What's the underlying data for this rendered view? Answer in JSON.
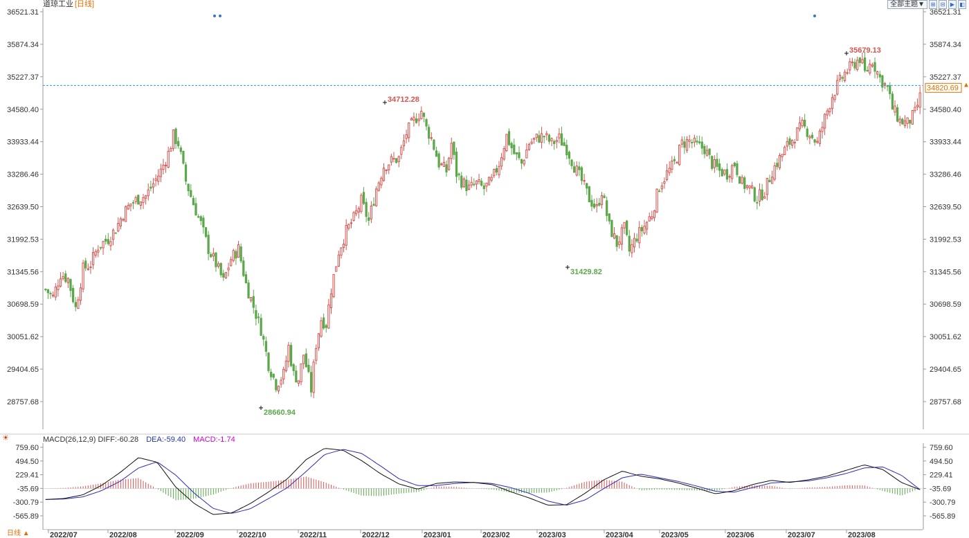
{
  "header": {
    "instrument": "道琼工业",
    "period": "[日线]"
  },
  "toolbar": {
    "theme_select": "全部主题▼",
    "buttons": [
      "⊞",
      "⊟",
      "▶",
      "◧"
    ]
  },
  "macd_legend": {
    "name": "MACD(26,12,9)",
    "diff": "DIFF:-60.28",
    "dea": "DEA:-59.40",
    "macd": "MACD:-1.74"
  },
  "period_tab": "日线 ▲",
  "colors": {
    "up": "#d9534f",
    "down": "#5aa84a",
    "diff_line": "#111111",
    "dea_line": "#2b2bbf",
    "current_line": "#3399dd",
    "current_tag": "#e07000"
  },
  "chart_data": [
    {
      "type": "candlestick",
      "title": "道琼工业 [日线]",
      "y_ticks": [
        "36521.31",
        "35874.34",
        "35227.37",
        "34580.40",
        "33933.44",
        "33286.46",
        "32639.50",
        "31992.53",
        "31345.56",
        "30698.59",
        "30051.62",
        "29404.65",
        "28757.68"
      ],
      "ylim": [
        28757.68,
        36521.31
      ],
      "x_ticks": [
        "2022/07",
        "2022/08",
        "2022/09",
        "2022/10",
        "2022/11",
        "2022/12",
        "2023/01",
        "2023/02",
        "2023/03",
        "2023/04",
        "2023/05",
        "2023/06",
        "2023/07",
        "2023/08"
      ],
      "current_price": "34820.69",
      "annotations": [
        {
          "label": "28660.94",
          "kind": "low",
          "value": 28660.94,
          "month": "2022/10"
        },
        {
          "label": "34712.28",
          "kind": "high",
          "value": 34712.28,
          "month": "2022/12"
        },
        {
          "label": "31429.82",
          "kind": "low",
          "value": 31429.82,
          "month": "2023/03"
        },
        {
          "label": "35679.13",
          "kind": "high",
          "value": 35679.13,
          "month": "2023/08"
        }
      ],
      "close_path": [
        [
          0,
          30990
        ],
        [
          3,
          30840
        ],
        [
          6,
          31300
        ],
        [
          9,
          31200
        ],
        [
          12,
          30620
        ],
        [
          15,
          31400
        ],
        [
          18,
          31500
        ],
        [
          21,
          31850
        ],
        [
          25,
          32000
        ],
        [
          28,
          32200
        ],
        [
          31,
          32500
        ],
        [
          34,
          32700
        ],
        [
          37,
          32800
        ],
        [
          40,
          32850
        ],
        [
          43,
          33100
        ],
        [
          46,
          33350
        ],
        [
          49,
          33700
        ],
        [
          51,
          34050
        ],
        [
          53,
          33900
        ],
        [
          56,
          33150
        ],
        [
          59,
          32700
        ],
        [
          62,
          32300
        ],
        [
          65,
          31800
        ],
        [
          68,
          31500
        ],
        [
          71,
          31150
        ],
        [
          74,
          31600
        ],
        [
          77,
          31800
        ],
        [
          80,
          31100
        ],
        [
          83,
          30650
        ],
        [
          86,
          30200
        ],
        [
          89,
          29500
        ],
        [
          92,
          29100
        ],
        [
          95,
          29300
        ],
        [
          97,
          29850
        ],
        [
          99,
          29300
        ],
        [
          101,
          29200
        ],
        [
          103,
          29700
        ],
        [
          106,
          29000
        ],
        [
          108,
          29900
        ],
        [
          110,
          30400
        ],
        [
          112,
          30300
        ],
        [
          114,
          31000
        ],
        [
          117,
          31750
        ],
        [
          120,
          32150
        ],
        [
          123,
          32400
        ],
        [
          126,
          32750
        ],
        [
          129,
          32350
        ],
        [
          132,
          33000
        ],
        [
          135,
          33450
        ],
        [
          138,
          33550
        ],
        [
          141,
          33600
        ],
        [
          144,
          34100
        ],
        [
          147,
          34350
        ],
        [
          150,
          34550
        ],
        [
          152,
          34200
        ],
        [
          154,
          34000
        ],
        [
          157,
          33500
        ],
        [
          160,
          33350
        ],
        [
          162,
          33900
        ],
        [
          164,
          33300
        ],
        [
          166,
          33150
        ],
        [
          169,
          33000
        ],
        [
          172,
          33100
        ],
        [
          175,
          33000
        ],
        [
          178,
          33150
        ],
        [
          181,
          33500
        ],
        [
          184,
          34050
        ],
        [
          187,
          33700
        ],
        [
          190,
          33500
        ],
        [
          193,
          33900
        ],
        [
          196,
          34000
        ],
        [
          199,
          34050
        ],
        [
          202,
          33900
        ],
        [
          205,
          34000
        ],
        [
          208,
          33800
        ],
        [
          211,
          33450
        ],
        [
          214,
          33150
        ],
        [
          217,
          32800
        ],
        [
          220,
          32600
        ],
        [
          222,
          32950
        ],
        [
          225,
          32250
        ],
        [
          228,
          31900
        ],
        [
          231,
          32200
        ],
        [
          233,
          31750
        ],
        [
          236,
          32050
        ],
        [
          239,
          32250
        ],
        [
          242,
          32500
        ],
        [
          245,
          33050
        ],
        [
          248,
          33300
        ],
        [
          251,
          33500
        ],
        [
          254,
          33900
        ],
        [
          257,
          33950
        ],
        [
          260,
          33850
        ],
        [
          263,
          33800
        ],
        [
          266,
          33500
        ],
        [
          269,
          33350
        ],
        [
          272,
          33300
        ],
        [
          275,
          33500
        ],
        [
          278,
          33100
        ],
        [
          281,
          33000
        ],
        [
          284,
          32800
        ],
        [
          287,
          32950
        ],
        [
          290,
          33350
        ],
        [
          293,
          33600
        ],
        [
          296,
          33850
        ],
        [
          299,
          34050
        ],
        [
          302,
          34250
        ],
        [
          305,
          34100
        ],
        [
          308,
          33900
        ],
        [
          311,
          34400
        ],
        [
          314,
          34850
        ],
        [
          316,
          35050
        ],
        [
          319,
          35300
        ],
        [
          322,
          35450
        ],
        [
          325,
          35600
        ],
        [
          327,
          35300
        ],
        [
          330,
          35550
        ],
        [
          333,
          35200
        ],
        [
          336,
          35000
        ],
        [
          338,
          34600
        ],
        [
          341,
          34350
        ],
        [
          344,
          34300
        ],
        [
          347,
          34500
        ],
        [
          349,
          34820.69
        ]
      ]
    },
    {
      "type": "macd",
      "title": "MACD(26,12,9)",
      "y_ticks": [
        "759.60",
        "494.50",
        "229.41",
        "-35.69",
        "-300.79",
        "-565.89"
      ],
      "ylim": [
        -565.89,
        759.6
      ],
      "series": [
        {
          "name": "DIFF",
          "values": [
            -250,
            -230,
            -160,
            20,
            270,
            560,
            470,
            -10,
            -330,
            -540,
            -510,
            -330,
            -100,
            150,
            520,
            740,
            700,
            500,
            250,
            50,
            -50,
            60,
            90,
            80,
            40,
            -100,
            -220,
            -360,
            -350,
            -130,
            130,
            300,
            200,
            150,
            70,
            -30,
            -140,
            -80,
            40,
            120,
            80,
            130,
            200,
            310,
            420,
            330,
            80,
            -60
          ]
        },
        {
          "name": "DEA",
          "values": [
            -250,
            -240,
            -200,
            -80,
            100,
            360,
            480,
            220,
            -130,
            -420,
            -520,
            -430,
            -230,
            -20,
            290,
            620,
            720,
            640,
            400,
            150,
            20,
            20,
            60,
            80,
            60,
            -20,
            -130,
            -280,
            -360,
            -260,
            -40,
            170,
            240,
            170,
            100,
            10,
            -90,
            -110,
            -20,
            70,
            90,
            110,
            170,
            250,
            360,
            380,
            220,
            -59.4
          ]
        },
        {
          "name": "MACD",
          "values": [
            0,
            10,
            40,
            100,
            170,
            200,
            -10,
            -230,
            -200,
            -120,
            10,
            100,
            130,
            170,
            230,
            120,
            -20,
            -140,
            -150,
            -100,
            -70,
            40,
            30,
            0,
            -20,
            -80,
            -90,
            -80,
            10,
            130,
            170,
            130,
            -40,
            -20,
            -30,
            -40,
            -50,
            30,
            60,
            50,
            -10,
            20,
            30,
            60,
            60,
            -50,
            -140,
            -1.74
          ]
        }
      ]
    }
  ]
}
